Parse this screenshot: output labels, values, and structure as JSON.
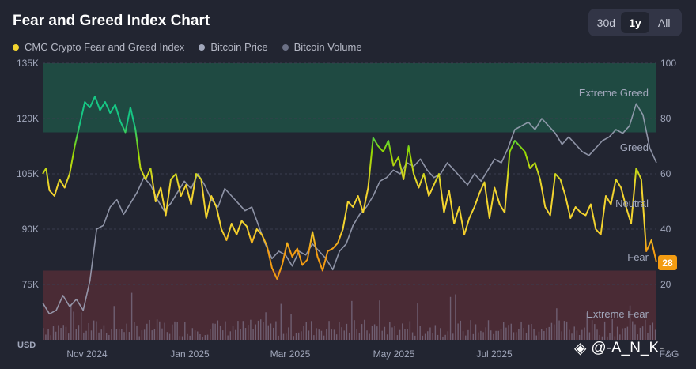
{
  "header": {
    "title": "Fear and Greed Index Chart"
  },
  "timeframes": [
    {
      "label": "30d",
      "active": false
    },
    {
      "label": "1y",
      "active": true
    },
    {
      "label": "All",
      "active": false
    }
  ],
  "legend": [
    {
      "label": "CMC Crypto Fear and Greed Index",
      "color": "#f3d42f"
    },
    {
      "label": "Bitcoin Price",
      "color": "#a1a7bb"
    },
    {
      "label": "Bitcoin Volume",
      "color": "#6b7085"
    }
  ],
  "watermark": {
    "text": "@-A_N_K-"
  },
  "current_value": {
    "value": "28",
    "color": "#f39c12"
  },
  "chart_data": {
    "type": "line",
    "x_tick_labels": [
      "Nov 2024",
      "Jan 2025",
      "Mar 2025",
      "May 2025",
      "Jul 2025",
      "F&G"
    ],
    "left_axis": {
      "unit": "USD",
      "ticks": [
        "135K",
        "120K",
        "105K",
        "90K",
        "75K"
      ],
      "ylim": [
        60000,
        135000
      ]
    },
    "right_axis": {
      "ticks": [
        "100",
        "80",
        "60",
        "40",
        "20"
      ],
      "ylim": [
        0,
        100
      ]
    },
    "zones": [
      {
        "label": "Extreme Greed",
        "range": [
          75,
          100
        ],
        "color": "#1f4a42"
      },
      {
        "label": "Greed",
        "range": [
          55,
          75
        ]
      },
      {
        "label": "Neutral",
        "range": [
          45,
          55
        ]
      },
      {
        "label": "Fear",
        "range": [
          25,
          45
        ]
      },
      {
        "label": "Extreme Fear",
        "range": [
          0,
          25
        ],
        "color": "#4a2b35"
      }
    ],
    "series": [
      {
        "name": "CMC Crypto Fear and Greed Index",
        "axis": "right",
        "x": [
          0,
          2,
          4,
          7,
          10,
          13,
          16,
          19,
          22,
          25,
          28,
          31,
          34,
          37,
          40,
          43,
          46,
          49,
          52,
          55,
          58,
          61,
          64,
          67,
          70,
          73,
          76,
          79,
          82,
          85,
          88,
          91,
          94,
          97,
          100,
          103,
          106,
          109,
          112,
          115,
          118,
          121,
          124,
          127,
          130,
          133,
          136,
          139,
          142,
          145,
          148,
          151,
          154,
          157,
          160,
          163,
          166,
          169,
          172,
          175,
          178,
          181,
          184,
          187,
          190,
          193,
          196,
          199,
          202,
          205,
          208,
          211,
          214,
          217,
          220,
          223,
          226,
          229,
          232,
          235,
          238,
          241,
          244,
          247,
          250,
          253,
          256,
          259,
          262,
          265,
          268,
          271,
          274,
          277,
          280,
          283,
          286,
          289,
          292,
          295,
          298,
          301,
          304,
          307,
          310,
          313,
          316,
          319,
          322,
          325,
          328,
          331,
          334,
          337,
          340,
          343,
          346,
          349,
          352,
          355,
          358,
          361,
          364
        ],
        "values": [
          60,
          62,
          54,
          52,
          58,
          55,
          60,
          70,
          78,
          86,
          84,
          88,
          83,
          86,
          82,
          85,
          79,
          75,
          84,
          76,
          62,
          58,
          62,
          50,
          55,
          45,
          58,
          60,
          52,
          56,
          49,
          60,
          58,
          44,
          52,
          48,
          40,
          36,
          42,
          38,
          43,
          41,
          35,
          40,
          38,
          34,
          26,
          22,
          27,
          35,
          30,
          33,
          27,
          29,
          39,
          30,
          25,
          32,
          33,
          35,
          40,
          50,
          48,
          52,
          46,
          55,
          73,
          70,
          68,
          72,
          63,
          66,
          58,
          70,
          60,
          55,
          60,
          52,
          56,
          60,
          46,
          54,
          42,
          48,
          38,
          44,
          48,
          53,
          57,
          44,
          55,
          49,
          46,
          68,
          72,
          70,
          68,
          62,
          64,
          58,
          48,
          45,
          60,
          58,
          52,
          44,
          48,
          46,
          45,
          49,
          40,
          38,
          52,
          49,
          58,
          55,
          48,
          42,
          62,
          58,
          32,
          36,
          28
        ],
        "color": "#f3d42f"
      },
      {
        "name": "Bitcoin Price",
        "axis": "left",
        "x": [
          0,
          4,
          8,
          12,
          16,
          20,
          24,
          28,
          32,
          36,
          40,
          44,
          48,
          52,
          56,
          60,
          64,
          68,
          72,
          76,
          80,
          84,
          88,
          92,
          96,
          100,
          104,
          108,
          112,
          116,
          120,
          124,
          128,
          132,
          136,
          140,
          144,
          148,
          152,
          156,
          160,
          164,
          168,
          172,
          176,
          180,
          184,
          188,
          192,
          196,
          200,
          204,
          208,
          212,
          216,
          220,
          224,
          228,
          232,
          236,
          240,
          244,
          248,
          252,
          256,
          260,
          264,
          268,
          272,
          276,
          280,
          284,
          288,
          292,
          296,
          300,
          304,
          308,
          312,
          316,
          320,
          324,
          328,
          332,
          336,
          340,
          344,
          348,
          352,
          356,
          360,
          364
        ],
        "values": [
          70000,
          67000,
          68000,
          72000,
          69000,
          71000,
          68000,
          76000,
          90000,
          91000,
          96000,
          98000,
          94000,
          97000,
          100000,
          104000,
          102000,
          98000,
          95000,
          97000,
          100000,
          103000,
          101000,
          105000,
          102000,
          98000,
          96000,
          101000,
          99000,
          97000,
          95000,
          96000,
          91000,
          86000,
          82000,
          84000,
          83000,
          80000,
          84000,
          83000,
          86000,
          84000,
          82000,
          79000,
          84000,
          86000,
          91000,
          94000,
          96000,
          99000,
          103000,
          104000,
          106000,
          105000,
          108000,
          107000,
          109000,
          106000,
          104000,
          105000,
          108000,
          106000,
          104000,
          102000,
          105000,
          103000,
          106000,
          109000,
          108000,
          112000,
          117000,
          118000,
          119000,
          117000,
          120000,
          118000,
          116000,
          113000,
          115000,
          113000,
          111000,
          110000,
          112000,
          114000,
          115000,
          117000,
          116000,
          118000,
          124000,
          121000,
          112000,
          108000
        ],
        "color": "#a1a7bb"
      },
      {
        "name": "Bitcoin Volume",
        "axis": "bars",
        "summary": "daily volume bars along the bottom of the plot",
        "color": "#6b7085"
      }
    ]
  }
}
